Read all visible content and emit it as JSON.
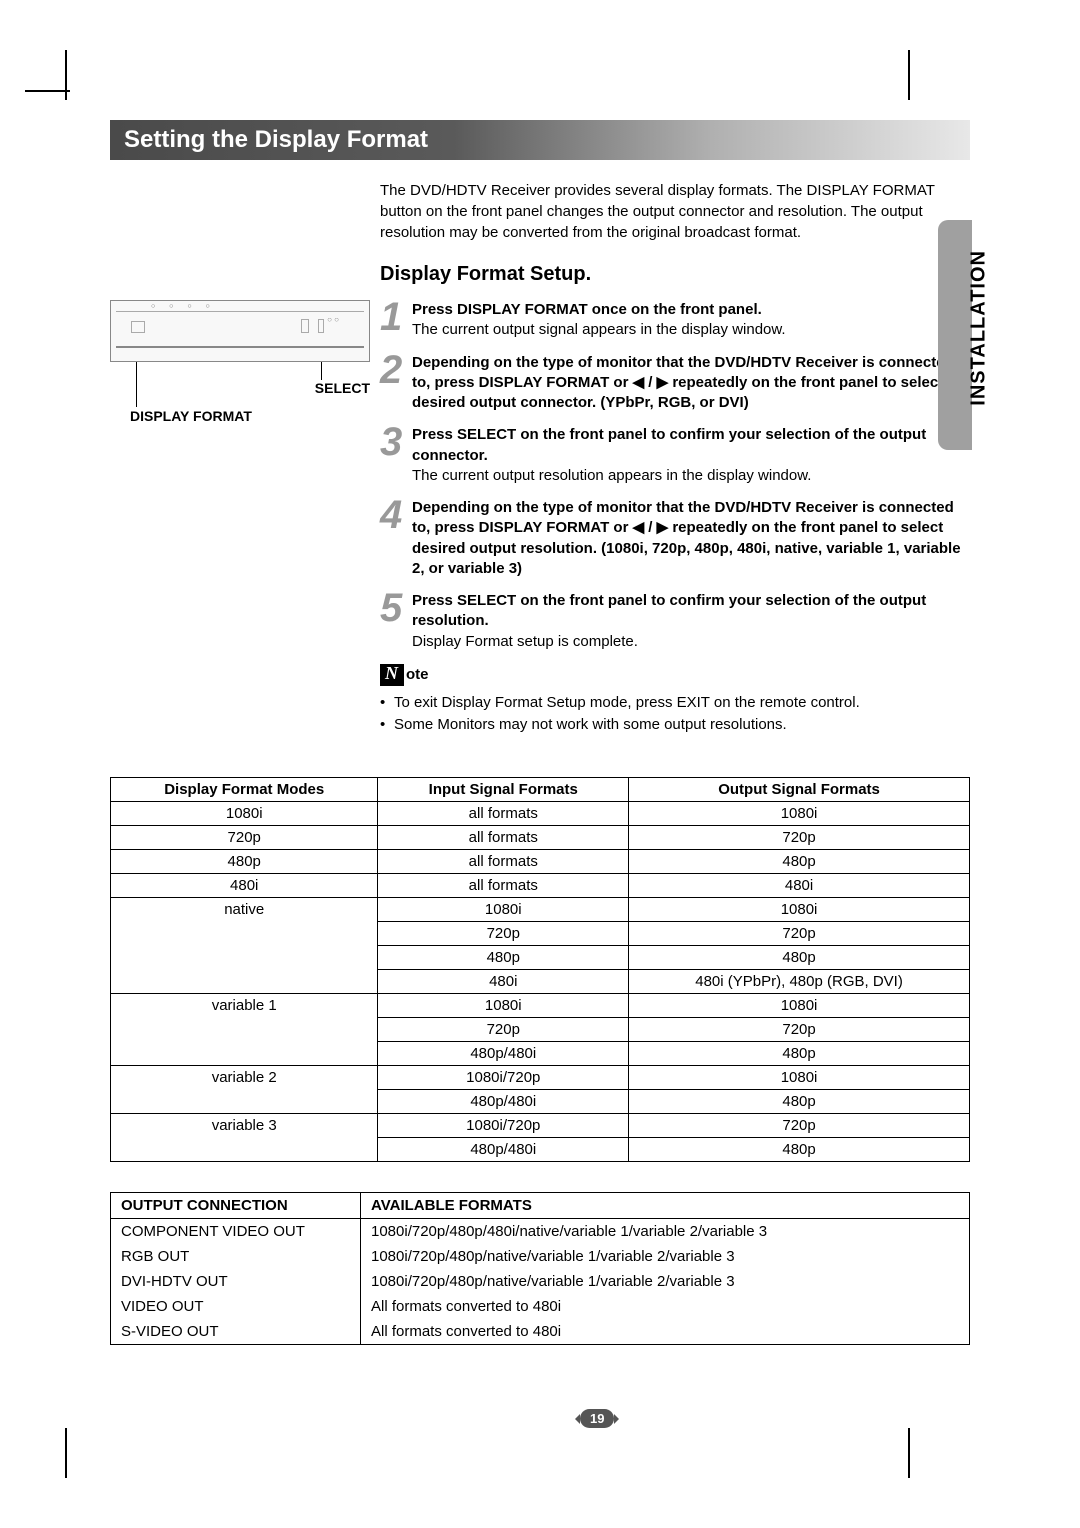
{
  "title": "Setting the Display Format",
  "sideTab": "INSTALLATION",
  "intro": "The DVD/HDTV Receiver provides several display formats. The DISPLAY FORMAT button on the front panel changes the output connector and resolution. The output resolution may be converted from the original broadcast format.",
  "sectionHeading": "Display Format Setup.",
  "diagram": {
    "selectLabel": "SELECT",
    "displayFormatLabel": "DISPLAY FORMAT"
  },
  "steps": [
    {
      "num": "1",
      "bold": "Press DISPLAY FORMAT once on the front panel.",
      "normal": "The current output signal appears in the display window."
    },
    {
      "num": "2",
      "bold": "Depending on the type of monitor that the DVD/HDTV Receiver is connected to, press DISPLAY FORMAT or ◀ / ▶ repeatedly on the front panel to select desired output connector. (YPbPr, RGB, or DVI)",
      "normal": ""
    },
    {
      "num": "3",
      "bold": "Press  SELECT on the front panel to confirm your selection of the output connector.",
      "normal": "The current output resolution appears in the display window."
    },
    {
      "num": "4",
      "bold": "Depending on the type of monitor that the DVD/HDTV Receiver is connected to, press DISPLAY FORMAT or ◀ / ▶ repeatedly on the front panel to select desired output resolution. (1080i, 720p, 480p, 480i, native, variable 1, variable 2, or variable 3)",
      "normal": ""
    },
    {
      "num": "5",
      "bold": "Press SELECT on the front panel to confirm your selection of the output resolution.",
      "normal": "Display Format setup is complete."
    }
  ],
  "noteIcon": "N",
  "noteLabel": "ote",
  "notes": [
    "To exit Display Format Setup mode, press EXIT on the remote control.",
    "Some Monitors may not work with some output resolutions."
  ],
  "table1": {
    "headers": [
      "Display Format Modes",
      "Input Signal Formats",
      "Output Signal Formats"
    ],
    "rows": [
      {
        "mode": "1080i",
        "input": "all formats",
        "output": "1080i",
        "modeSpan": 1
      },
      {
        "mode": "720p",
        "input": "all formats",
        "output": "720p",
        "modeSpan": 1
      },
      {
        "mode": "480p",
        "input": "all formats",
        "output": "480p",
        "modeSpan": 1
      },
      {
        "mode": "480i",
        "input": "all formats",
        "output": "480i",
        "modeSpan": 1
      },
      {
        "mode": "native",
        "input": "1080i",
        "output": "1080i",
        "modeSpan": 4
      },
      {
        "mode": "",
        "input": "720p",
        "output": "720p",
        "modeSpan": 0
      },
      {
        "mode": "",
        "input": "480p",
        "output": "480p",
        "modeSpan": 0
      },
      {
        "mode": "",
        "input": "480i",
        "output": "480i (YPbPr), 480p (RGB, DVI)",
        "modeSpan": 0
      },
      {
        "mode": "variable 1",
        "input": "1080i",
        "output": "1080i",
        "modeSpan": 3
      },
      {
        "mode": "",
        "input": "720p",
        "output": "720p",
        "modeSpan": 0
      },
      {
        "mode": "",
        "input": "480p/480i",
        "output": "480p",
        "modeSpan": 0
      },
      {
        "mode": "variable 2",
        "input": "1080i/720p",
        "output": "1080i",
        "modeSpan": 2
      },
      {
        "mode": "",
        "input": "480p/480i",
        "output": "480p",
        "modeSpan": 0
      },
      {
        "mode": "variable 3",
        "input": "1080i/720p",
        "output": "720p",
        "modeSpan": 2
      },
      {
        "mode": "",
        "input": "480p/480i",
        "output": "480p",
        "modeSpan": 0
      }
    ]
  },
  "table2": {
    "headers": [
      "OUTPUT CONNECTION",
      "AVAILABLE FORMATS"
    ],
    "rows": [
      [
        "COMPONENT VIDEO OUT",
        "1080i/720p/480p/480i/native/variable 1/variable 2/variable 3"
      ],
      [
        "RGB OUT",
        "1080i/720p/480p/native/variable 1/variable 2/variable 3"
      ],
      [
        "DVI-HDTV OUT",
        "1080i/720p/480p/native/variable 1/variable 2/variable 3"
      ],
      [
        "VIDEO OUT",
        "All formats converted to 480i"
      ],
      [
        "S-VIDEO OUT",
        "All formats converted to 480i"
      ]
    ]
  },
  "pageNumber": "19",
  "colors": {
    "stepNumber": "#999999",
    "sideTabBg": "#a0a0a0",
    "titleBarStart": "#4a4a4a"
  }
}
